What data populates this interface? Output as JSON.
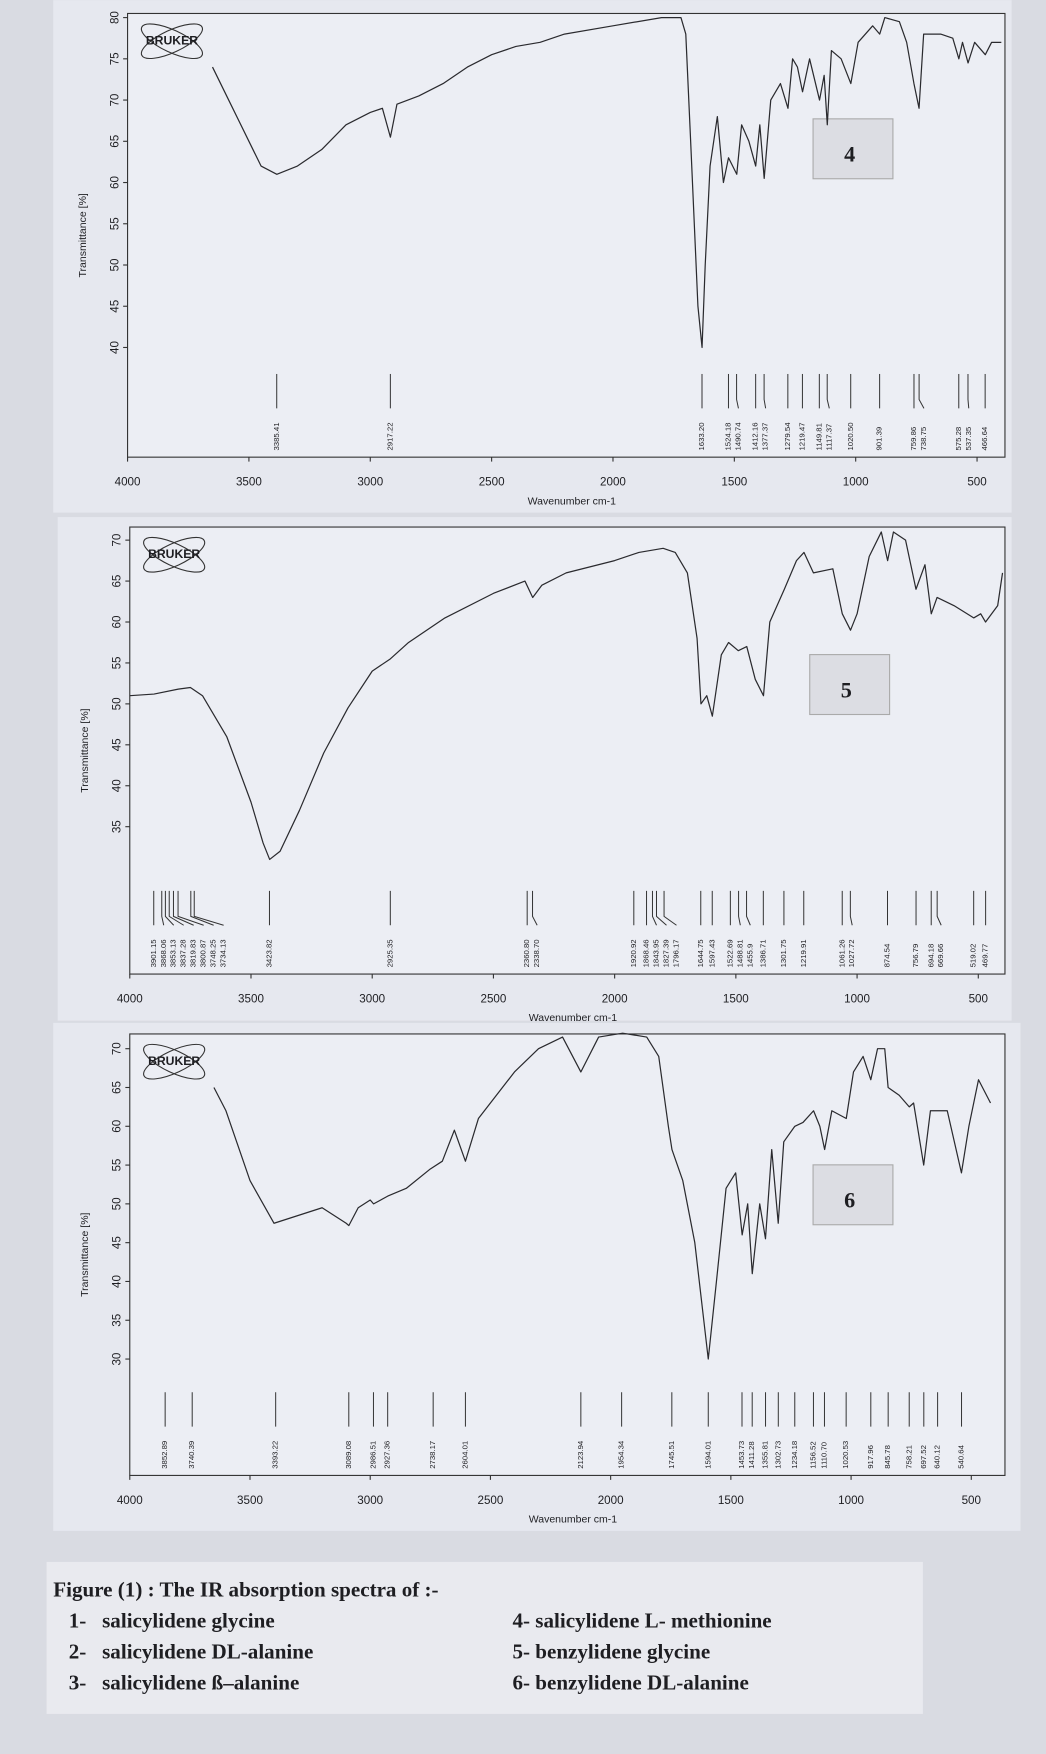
{
  "chart_data": [
    {
      "type": "line",
      "logo": "BRUKER",
      "annotation": "4",
      "ylabel": "Transmittance [%]",
      "xlabel": "Wavenumber cm-1",
      "xlim": [
        4000,
        385
      ],
      "ylim": [
        26.7,
        80.5
      ],
      "xticks": [
        4000,
        3500,
        3000,
        2500,
        2000,
        1500,
        1000,
        500
      ],
      "yticks": [
        40,
        45,
        50,
        55,
        60,
        65,
        70,
        75,
        80
      ],
      "x": [
        3650,
        3600,
        3500,
        3450,
        3385,
        3300,
        3200,
        3100,
        3000,
        2950,
        2917,
        2890,
        2800,
        2700,
        2600,
        2500,
        2400,
        2300,
        2200,
        2000,
        1800,
        1720,
        1700,
        1680,
        1650,
        1633,
        1620,
        1600,
        1570,
        1545,
        1524,
        1490,
        1470,
        1440,
        1412,
        1395,
        1377,
        1350,
        1310,
        1279,
        1260,
        1240,
        1219,
        1190,
        1149,
        1130,
        1117,
        1100,
        1060,
        1020,
        990,
        930,
        901,
        880,
        820,
        790,
        760,
        739,
        720,
        650,
        600,
        575,
        560,
        537,
        510,
        466,
        440,
        400
      ],
      "series": [
        {
          "color": "#2a2a2e",
          "values": [
            74,
            71,
            65,
            62,
            61,
            62,
            64,
            67,
            68.5,
            69,
            65.5,
            69.5,
            70.5,
            72,
            74,
            75.5,
            76.5,
            77,
            78,
            79,
            80,
            80,
            78,
            65,
            45,
            40,
            50,
            62,
            68,
            60,
            63,
            61,
            67,
            65,
            62,
            67,
            60.5,
            70,
            72,
            69,
            75,
            74,
            71,
            75,
            70,
            73,
            67,
            76,
            75,
            72,
            77,
            79,
            78,
            80,
            79.5,
            77,
            72,
            69,
            78,
            78,
            77.5,
            75,
            77,
            74.5,
            77,
            75.5,
            77,
            77
          ]
        }
      ],
      "peaks": [
        3385.41,
        2917.22,
        {
          "value": 1633.2,
          "label": "1633.20"
        },
        1524.18,
        1490.74,
        1412.16,
        1377.37,
        1279.54,
        1219.47,
        1149.81,
        1117.37,
        {
          "value": 1020.5,
          "label": "1020.50"
        },
        901.39,
        759.86,
        738.75,
        575.28,
        537.35,
        466.64
      ]
    },
    {
      "type": "line",
      "logo": "BRUKER",
      "annotation": "5",
      "ylabel": "Transmittance [%]",
      "xlabel": "Wavenumber cm-1",
      "xlim": [
        4000,
        390
      ],
      "ylim": [
        17,
        71.6
      ],
      "xticks": [
        4000,
        3500,
        3000,
        2500,
        2000,
        1500,
        1000,
        500
      ],
      "yticks": [
        35,
        40,
        45,
        50,
        55,
        60,
        65,
        70
      ],
      "x": [
        4000,
        3900,
        3800,
        3750,
        3700,
        3600,
        3500,
        3450,
        3423,
        3380,
        3300,
        3200,
        3100,
        3000,
        2925,
        2850,
        2700,
        2500,
        2370,
        2338,
        2300,
        2200,
        2000,
        1900,
        1800,
        1750,
        1700,
        1660,
        1644,
        1620,
        1597,
        1560,
        1530,
        1490,
        1455,
        1420,
        1386,
        1360,
        1300,
        1250,
        1219,
        1180,
        1100,
        1061,
        1027,
        1000,
        950,
        900,
        874,
        850,
        800,
        757,
        720,
        694,
        670,
        600,
        519,
        490,
        470,
        420,
        400
      ],
      "series": [
        {
          "color": "#2a2a2e",
          "values": [
            51,
            51.2,
            51.8,
            52,
            51,
            46,
            38,
            33,
            31,
            32,
            37,
            44,
            49.5,
            54,
            55.5,
            57.5,
            60.5,
            63.5,
            65,
            63,
            64.5,
            66,
            67.5,
            68.5,
            69,
            68.5,
            66,
            58,
            50,
            51,
            48.5,
            56,
            57.5,
            56.5,
            57,
            53,
            51,
            60,
            64,
            67.5,
            68.5,
            66,
            66.5,
            61,
            59,
            61,
            68,
            71,
            67.5,
            71,
            70,
            64,
            67,
            61,
            63,
            62,
            60.5,
            61,
            60,
            62,
            66
          ]
        }
      ],
      "peaks": [
        3901.15,
        3868.06,
        3853.13,
        3837.28,
        3819.83,
        3800.87,
        3748.25,
        3734.13,
        3423.82,
        2925.35,
        {
          "value": 2360.8,
          "label": "2360.80"
        },
        {
          "value": 2338.7,
          "label": "2338.70"
        },
        1920.92,
        1868.46,
        1843.95,
        1827.39,
        1796.17,
        1644.75,
        1597.43,
        1522.69,
        1488.81,
        1455.9,
        1386.71,
        1301.75,
        1219.91,
        1061.26,
        1027.72,
        874.54,
        756.79,
        694.18,
        669.66,
        519.02,
        469.77
      ]
    },
    {
      "type": "line",
      "logo": "BRUKER",
      "annotation": "6",
      "ylabel": "Transmittance [%]",
      "xlabel": "Wavenumber cm-1",
      "xlim": [
        4000,
        360
      ],
      "ylim": [
        15,
        71.9
      ],
      "xticks": [
        4000,
        3500,
        3000,
        2500,
        2000,
        1500,
        1000,
        500
      ],
      "yticks": [
        30,
        35,
        40,
        45,
        50,
        55,
        60,
        65,
        70
      ],
      "x": [
        3650,
        3600,
        3500,
        3400,
        3300,
        3200,
        3100,
        3089,
        3050,
        3000,
        2986,
        2927,
        2850,
        2750,
        2700,
        2650,
        2604,
        2550,
        2400,
        2300,
        2200,
        2124,
        2050,
        1950,
        1850,
        1800,
        1760,
        1745,
        1700,
        1650,
        1594,
        1560,
        1520,
        1480,
        1453,
        1430,
        1411,
        1380,
        1356,
        1330,
        1303,
        1280,
        1234,
        1200,
        1156,
        1130,
        1110,
        1080,
        1020,
        990,
        950,
        918,
        890,
        860,
        846,
        800,
        758,
        740,
        698,
        670,
        640,
        600,
        541,
        510,
        470,
        420
      ],
      "series": [
        {
          "color": "#2a2a2e",
          "values": [
            65,
            62,
            53,
            47.5,
            48.5,
            49.5,
            47.5,
            47.2,
            49.5,
            50.5,
            50,
            51,
            52,
            54.5,
            55.5,
            59.5,
            55.5,
            61,
            67,
            70,
            71.5,
            67,
            71.5,
            72,
            71.5,
            69,
            60,
            57,
            53,
            45,
            30,
            40,
            52,
            54,
            46,
            50,
            41,
            50,
            45.5,
            57,
            47.5,
            58,
            60,
            60.5,
            62,
            60,
            57,
            62,
            61,
            67,
            69,
            66,
            70,
            70,
            65,
            64,
            62.5,
            63,
            55,
            62,
            62,
            62,
            54,
            60,
            66,
            63
          ]
        }
      ],
      "peaks": [
        3852.89,
        3740.39,
        3393.22,
        3089.08,
        2986.51,
        2927.36,
        2738.17,
        2604.01,
        2123.94,
        1954.34,
        1745.51,
        1594.01,
        1453.73,
        1411.28,
        1355.81,
        1302.73,
        1234.18,
        1156.52,
        {
          "value": 1110.7,
          "label": "1110.70"
        },
        1020.53,
        917.96,
        845.78,
        758.21,
        697.52,
        640.12,
        540.64
      ]
    }
  ],
  "caption": {
    "title": "Figure (1) : The IR absorption spectra of :-",
    "items": [
      "1-   salicylidene glycine",
      "2-   salicylidene DL-alanine",
      "3-   salicylidene ß–alanine",
      "4- salicylidene L- methionine",
      "5- benzylidene glycine",
      "6- benzylidene DL-alanine"
    ]
  }
}
